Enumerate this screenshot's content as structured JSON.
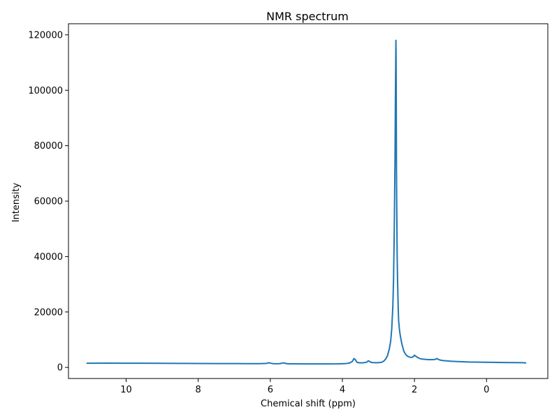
{
  "chart_data": {
    "type": "line",
    "title": "NMR spectrum",
    "xlabel": "Chemical shift (ppm)",
    "ylabel": "Intensity",
    "x_reversed": true,
    "xlim": [
      11.6,
      -1.7
    ],
    "ylim": [
      -4000,
      124000
    ],
    "xticks": [
      10,
      8,
      6,
      4,
      2,
      0
    ],
    "xtick_labels": [
      "10",
      "8",
      "6",
      "4",
      "2",
      "0"
    ],
    "yticks": [
      0,
      20000,
      40000,
      60000,
      80000,
      100000,
      120000
    ],
    "ytick_labels": [
      "0",
      "20000",
      "40000",
      "60000",
      "80000",
      "100000",
      "120000"
    ],
    "grid": false,
    "color": "#1f77b4",
    "series": [
      {
        "x": [
          11.1,
          10.5,
          10.0,
          9.5,
          9.0,
          8.5,
          8.0,
          7.5,
          7.0,
          6.6,
          6.3,
          6.1,
          6.05,
          5.98,
          5.92,
          5.85,
          5.75,
          5.68,
          5.63,
          5.58,
          5.5,
          5.3,
          5.0,
          4.7,
          4.4,
          4.1,
          3.9,
          3.8,
          3.72,
          3.68,
          3.64,
          3.6,
          3.55,
          3.5,
          3.4,
          3.32,
          3.28,
          3.24,
          3.2,
          3.1,
          3.0,
          2.9,
          2.85,
          2.8,
          2.75,
          2.7,
          2.66,
          2.63,
          2.6,
          2.58,
          2.56,
          2.54,
          2.53,
          2.52,
          2.515,
          2.51,
          2.505,
          2.5,
          2.49,
          2.48,
          2.47,
          2.46,
          2.45,
          2.44,
          2.42,
          2.4,
          2.38,
          2.35,
          2.3,
          2.25,
          2.2,
          2.15,
          2.1,
          2.05,
          2.0,
          1.95,
          1.9,
          1.87,
          1.85,
          1.82,
          1.78,
          1.7,
          1.6,
          1.5,
          1.42,
          1.38,
          1.34,
          1.3,
          1.25,
          1.2,
          1.1,
          1.0,
          0.8,
          0.5,
          0.0,
          -0.5,
          -1.0,
          -1.1
        ],
        "y": [
          1500,
          1550,
          1520,
          1500,
          1480,
          1450,
          1430,
          1400,
          1380,
          1360,
          1360,
          1450,
          1700,
          1500,
          1350,
          1320,
          1350,
          1500,
          1650,
          1450,
          1300,
          1280,
          1250,
          1250,
          1260,
          1300,
          1400,
          1600,
          2200,
          3200,
          2800,
          1900,
          1700,
          1650,
          1700,
          1900,
          2400,
          2100,
          1800,
          1700,
          1700,
          1900,
          2300,
          3000,
          4200,
          6500,
          9500,
          14000,
          22000,
          32000,
          50000,
          75000,
          95000,
          110000,
          118000,
          112000,
          95000,
          72000,
          55000,
          40000,
          32000,
          26000,
          21000,
          17000,
          14000,
          12000,
          10500,
          8500,
          6000,
          4800,
          4100,
          3800,
          3600,
          3700,
          4400,
          3900,
          3500,
          3300,
          3200,
          3100,
          3000,
          2900,
          2800,
          2800,
          2900,
          3200,
          2900,
          2700,
          2550,
          2450,
          2350,
          2250,
          2100,
          1950,
          1850,
          1750,
          1700,
          1600
        ]
      }
    ]
  }
}
